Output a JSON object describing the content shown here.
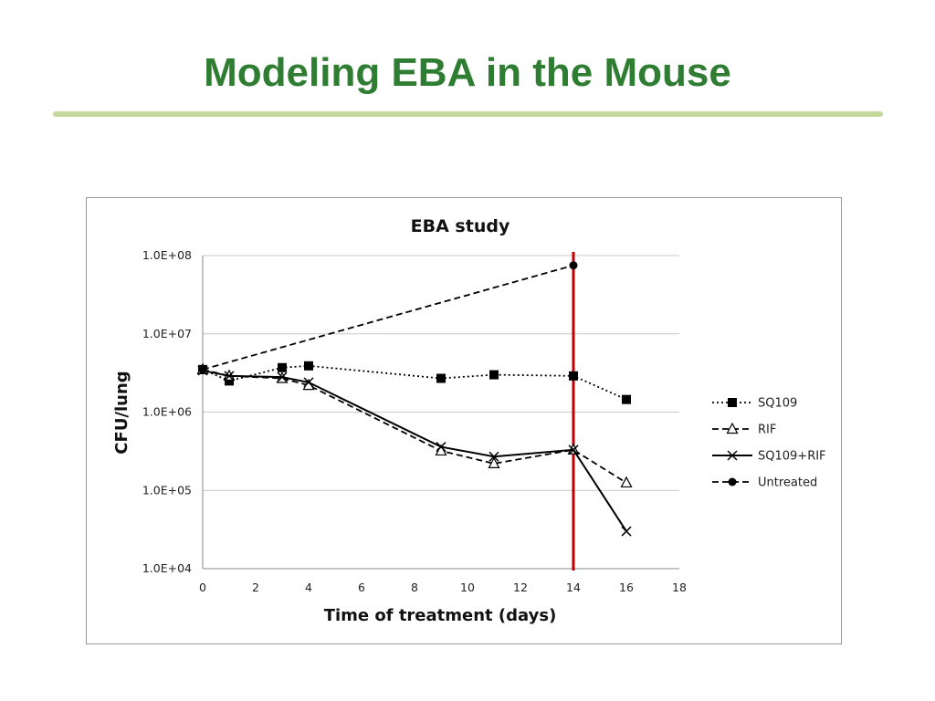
{
  "slide": {
    "title": "Modeling EBA in the Mouse",
    "title_color": "#2e7d32",
    "rule_color": "#c5d89b"
  },
  "chart_data": {
    "type": "line",
    "title": "EBA study",
    "xlabel": "Time of treatment (days)",
    "ylabel": "CFU/lung",
    "x_scale": "linear",
    "y_scale": "log",
    "xlim": [
      0,
      18
    ],
    "ylim": [
      10000,
      100000000
    ],
    "x_ticks": [
      "0",
      "2",
      "4",
      "6",
      "8",
      "10",
      "12",
      "14",
      "16",
      "18"
    ],
    "x_tick_values": [
      0,
      2,
      4,
      6,
      8,
      10,
      12,
      14,
      16,
      18
    ],
    "y_ticks": [
      "1.0E+04",
      "1.0E+05",
      "1.0E+06",
      "1.0E+07",
      "1.0E+08"
    ],
    "y_tick_values": [
      10000,
      100000,
      1000000,
      10000000,
      100000000
    ],
    "grid": "horizontal",
    "legend_position": "right",
    "reference_line": {
      "x": 14,
      "color": "#c00000"
    },
    "series": [
      {
        "name": "SQ109",
        "marker": "square",
        "line_style": "dotted",
        "color": "#000000",
        "points": [
          [
            0,
            3500000
          ],
          [
            1,
            2500000
          ],
          [
            3,
            3700000
          ],
          [
            4,
            3900000
          ],
          [
            9,
            2700000
          ],
          [
            11,
            3000000
          ],
          [
            14,
            2900000
          ],
          [
            16,
            1450000
          ]
        ]
      },
      {
        "name": "RIF",
        "marker": "triangle",
        "line_style": "dashed",
        "color": "#000000",
        "points": [
          [
            0,
            3500000
          ],
          [
            1,
            2900000
          ],
          [
            3,
            2700000
          ],
          [
            4,
            2200000
          ],
          [
            9,
            320000
          ],
          [
            11,
            220000
          ],
          [
            14,
            330000
          ],
          [
            16,
            125000
          ]
        ]
      },
      {
        "name": "SQ109+RIF",
        "marker": "x",
        "line_style": "solid",
        "color": "#000000",
        "points": [
          [
            0,
            3400000
          ],
          [
            1,
            2900000
          ],
          [
            3,
            2800000
          ],
          [
            4,
            2400000
          ],
          [
            9,
            360000
          ],
          [
            11,
            270000
          ],
          [
            14,
            330000
          ],
          [
            16,
            30000
          ]
        ]
      },
      {
        "name": "Untreated",
        "marker": "circle",
        "line_style": "dashed",
        "color": "#000000",
        "points": [
          [
            0,
            3500000
          ],
          [
            14,
            75000000
          ]
        ]
      }
    ]
  }
}
